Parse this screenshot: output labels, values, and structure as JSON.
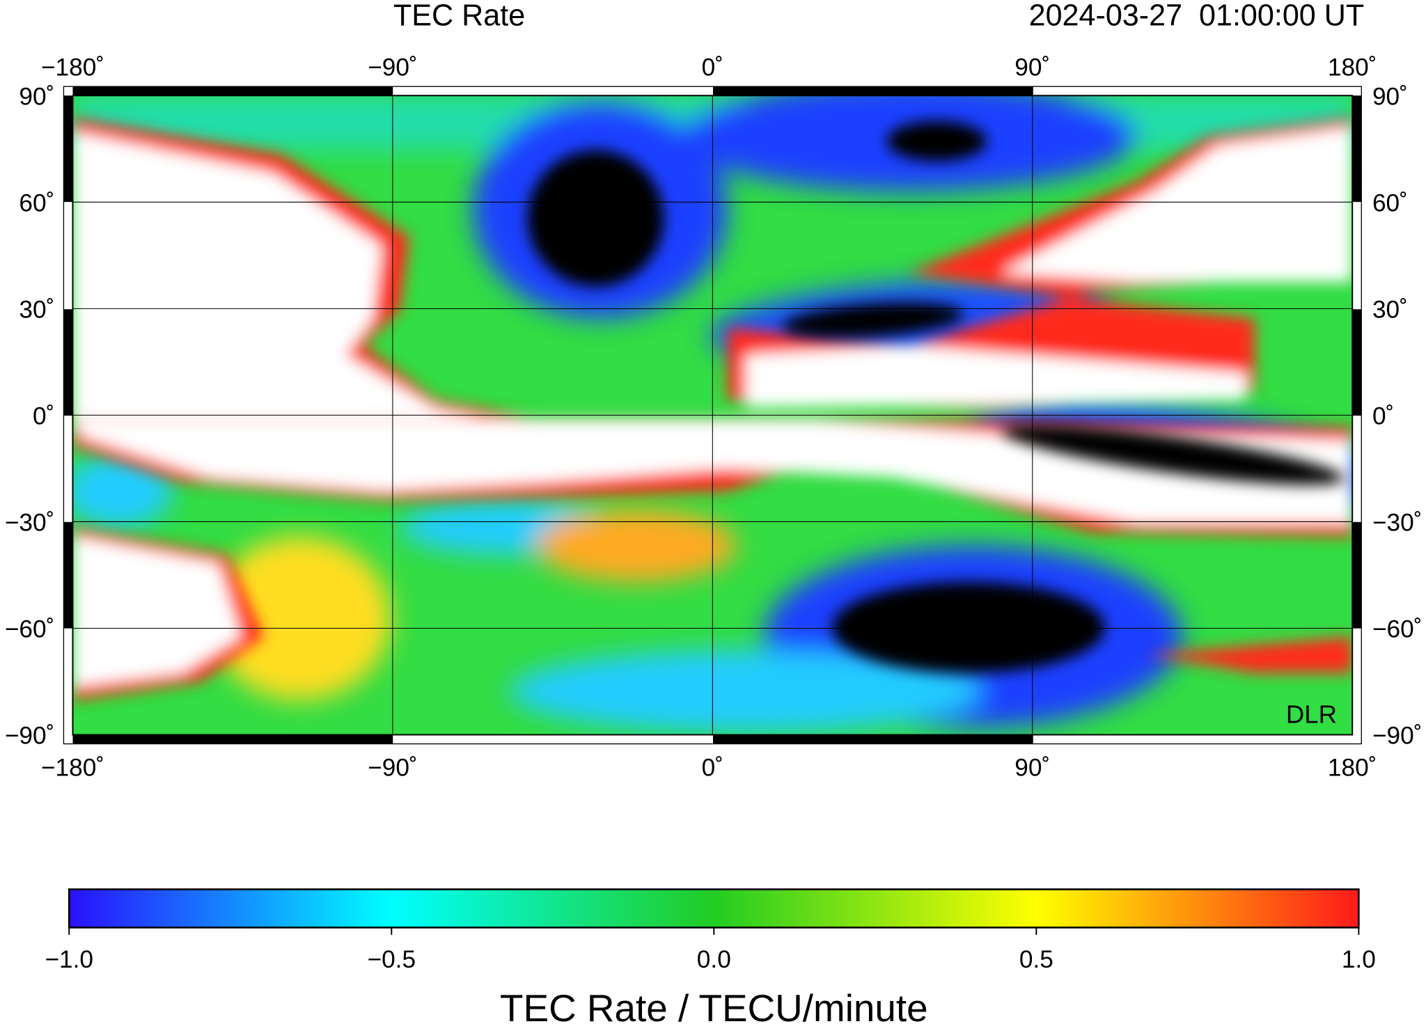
{
  "header": {
    "title": "TEC Rate",
    "timestamp": "2024-03-27  01:00:00 UT"
  },
  "map": {
    "lon_ticks": [
      {
        "value": -180,
        "label": "−180˚"
      },
      {
        "value": -90,
        "label": "−90˚"
      },
      {
        "value": 0,
        "label": "0˚"
      },
      {
        "value": 90,
        "label": "90˚"
      },
      {
        "value": 180,
        "label": "180˚"
      }
    ],
    "lat_ticks": [
      {
        "value": 90,
        "label": "90˚"
      },
      {
        "value": 60,
        "label": "60˚"
      },
      {
        "value": 30,
        "label": "30˚"
      },
      {
        "value": 0,
        "label": "0˚"
      },
      {
        "value": -30,
        "label": "−30˚"
      },
      {
        "value": -60,
        "label": "−60˚"
      },
      {
        "value": -90,
        "label": "−90˚"
      }
    ],
    "credit": "DLR"
  },
  "colorbar": {
    "range": [
      -1,
      1
    ],
    "ticks": [
      {
        "value": -1,
        "label": "−1.0"
      },
      {
        "value": -0.5,
        "label": "−0.5"
      },
      {
        "value": 0,
        "label": "0.0"
      },
      {
        "value": 0.5,
        "label": "0.5"
      },
      {
        "value": 1,
        "label": "1.0"
      }
    ],
    "label": "TEC Rate / TECU/minute"
  }
}
